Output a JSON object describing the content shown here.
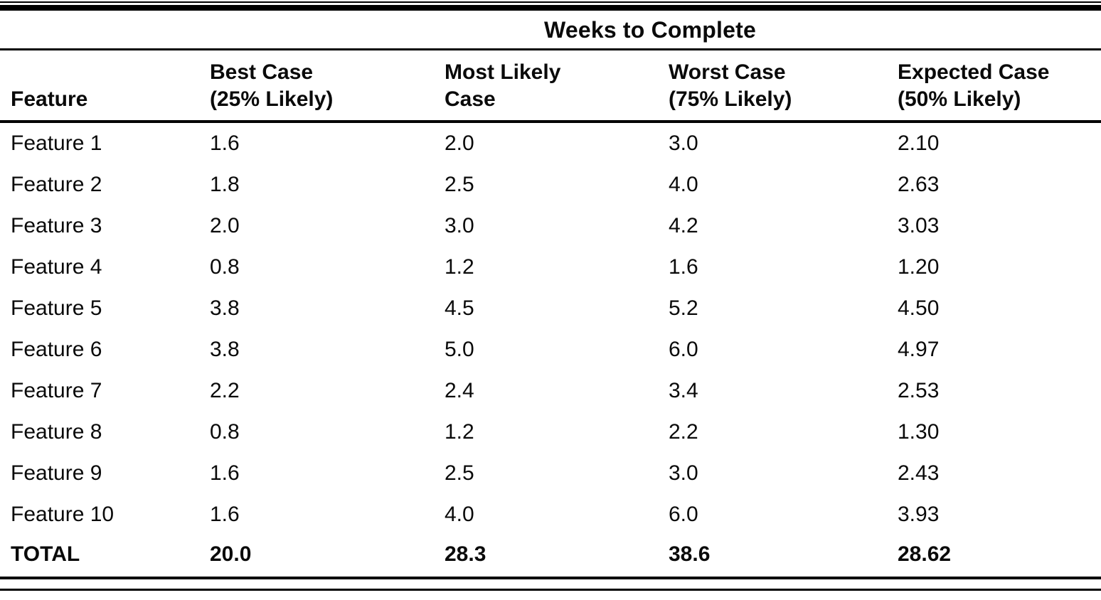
{
  "table": {
    "spanner": "Weeks to Complete",
    "columns": [
      {
        "line1": "Feature",
        "line2": ""
      },
      {
        "line1": "Best Case",
        "line2": "(25% Likely)"
      },
      {
        "line1": "Most Likely",
        "line2": "Case"
      },
      {
        "line1": "Worst Case",
        "line2": "(75% Likely)"
      },
      {
        "line1": "Expected Case",
        "line2": "(50% Likely)"
      }
    ],
    "rows": [
      {
        "feature": "Feature 1",
        "best": "1.6",
        "most_likely": "2.0",
        "worst": "3.0",
        "expected": "2.10"
      },
      {
        "feature": "Feature 2",
        "best": "1.8",
        "most_likely": "2.5",
        "worst": "4.0",
        "expected": "2.63"
      },
      {
        "feature": "Feature 3",
        "best": "2.0",
        "most_likely": "3.0",
        "worst": "4.2",
        "expected": "3.03"
      },
      {
        "feature": "Feature 4",
        "best": "0.8",
        "most_likely": "1.2",
        "worst": "1.6",
        "expected": "1.20"
      },
      {
        "feature": "Feature 5",
        "best": "3.8",
        "most_likely": "4.5",
        "worst": "5.2",
        "expected": "4.50"
      },
      {
        "feature": "Feature 6",
        "best": "3.8",
        "most_likely": "5.0",
        "worst": "6.0",
        "expected": "4.97"
      },
      {
        "feature": "Feature 7",
        "best": "2.2",
        "most_likely": "2.4",
        "worst": "3.4",
        "expected": "2.53"
      },
      {
        "feature": "Feature 8",
        "best": "0.8",
        "most_likely": "1.2",
        "worst": "2.2",
        "expected": "1.30"
      },
      {
        "feature": "Feature 9",
        "best": "1.6",
        "most_likely": "2.5",
        "worst": "3.0",
        "expected": "2.43"
      },
      {
        "feature": "Feature 10",
        "best": "1.6",
        "most_likely": "4.0",
        "worst": "6.0",
        "expected": "3.93"
      }
    ],
    "total": {
      "feature": "TOTAL",
      "best": "20.0",
      "most_likely": "28.3",
      "worst": "38.6",
      "expected": "28.62"
    },
    "ink_color": "#000000",
    "paper_color": "#ffffff"
  }
}
